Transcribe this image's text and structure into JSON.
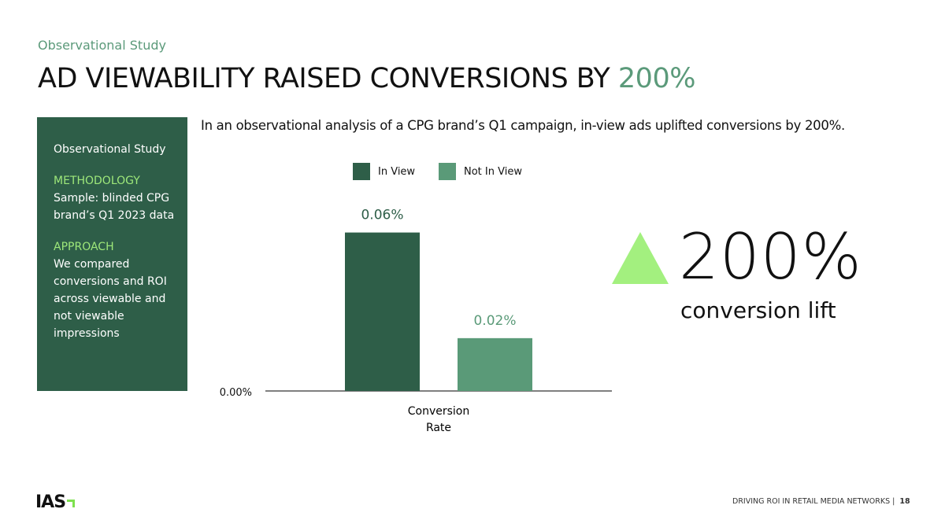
{
  "header": {
    "kicker": "Observational Study",
    "title_main": "AD VIEWABILITY RAISED CONVERSIONS BY ",
    "title_accent": "200%"
  },
  "sidebar": {
    "heading": "Observational Study",
    "methodology_label": "METHODOLOGY",
    "methodology_text": "Sample: blinded CPG brand’s Q1 2023 data",
    "approach_label": "APPROACH",
    "approach_text": "We compared conversions and ROI across viewable and not viewable impressions"
  },
  "subtitle": "In an observational analysis of a CPG brand’s Q1 campaign, in-view ads uplifted conversions by 200%.",
  "chart_data": {
    "type": "bar",
    "categories": [
      "Conversion Rate"
    ],
    "xlabel_lines": [
      "Conversion",
      "Rate"
    ],
    "series": [
      {
        "name": "In View",
        "values": [
          0.06
        ],
        "label": "0.06%",
        "color": "#2e5e48"
      },
      {
        "name": "Not In View",
        "values": [
          0.02
        ],
        "label": "0.02%",
        "color": "#5a9a78"
      }
    ],
    "y_tick_labels": [
      "0.00%"
    ],
    "ylim": [
      0,
      0.07
    ],
    "legend": "top"
  },
  "callout": {
    "value": "200%",
    "label": "conversion lift",
    "icon": "up-triangle-icon",
    "color": "#a3f07f"
  },
  "footer": {
    "logo": "IAS",
    "text": "DRIVING ROI IN RETAIL MEDIA NETWORKS",
    "separator": "|",
    "page": "18"
  }
}
